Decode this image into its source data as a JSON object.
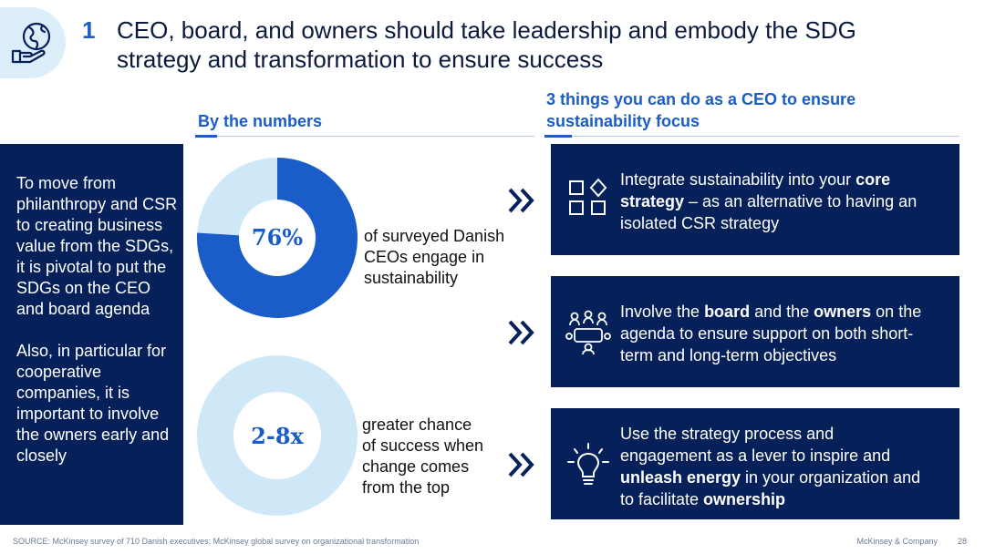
{
  "header": {
    "section_number": "1",
    "title_line1": "CEO, board, and owners should take leadership and embody the SDG",
    "title_line2": "strategy and transformation to ensure success",
    "icon": "globe-in-hand-icon"
  },
  "numbers_column": {
    "heading": "By the numbers"
  },
  "actions_column": {
    "heading_line1": "3 things you can do as a CEO to ensure",
    "heading_line2": "sustainability focus"
  },
  "left_panel": {
    "paragraph1": "To move from philanthropy and CSR to creating business value from the SDGs, it is pivotal to put the SDGs on the CEO and board agenda",
    "paragraph2": "Also, in particular for cooperative companies, it is important to involve the owners early and closely"
  },
  "stats": [
    {
      "value_label": "76%",
      "percent": 76,
      "lines": [
        "of surveyed Danish",
        "CEOs engage in",
        "sustainability"
      ]
    },
    {
      "value_label": "2-8x",
      "lines": [
        "greater chance",
        "of success when",
        "change comes",
        "from the top"
      ]
    }
  ],
  "actions": [
    {
      "icon": "shapes-grid-icon",
      "line1_a": "Integrate sustainability into your ",
      "line1_b": "core",
      "line2_a": "strategy",
      "line2_b": " – as an alternative to having an",
      "line3": "isolated CSR strategy"
    },
    {
      "icon": "meeting-table-icon",
      "line1_a": "Involve the ",
      "line1_b": "board",
      "line1_c": " and the ",
      "line1_d": "owners",
      "line1_e": " on the",
      "line2": "agenda to ensure support on both short-",
      "line3": "term and long-term objectives"
    },
    {
      "icon": "lightbulb-icon",
      "line1": "Use the strategy process and",
      "line2": "engagement as a lever to inspire and",
      "line3_a": "unleash energy",
      "line3_b": " in your organization and",
      "line4_a": "to facilitate ",
      "line4_b": "ownership"
    }
  ],
  "footer": {
    "source": "SOURCE: McKinsey survey of 710 Danish executives; McKinsey global survey on organizational transformation",
    "brand": "McKinsey & Company",
    "page": "28"
  },
  "colors": {
    "navy": "#06215a",
    "accent_blue": "#1a5cc8",
    "light_blue": "#cfe8f8"
  }
}
